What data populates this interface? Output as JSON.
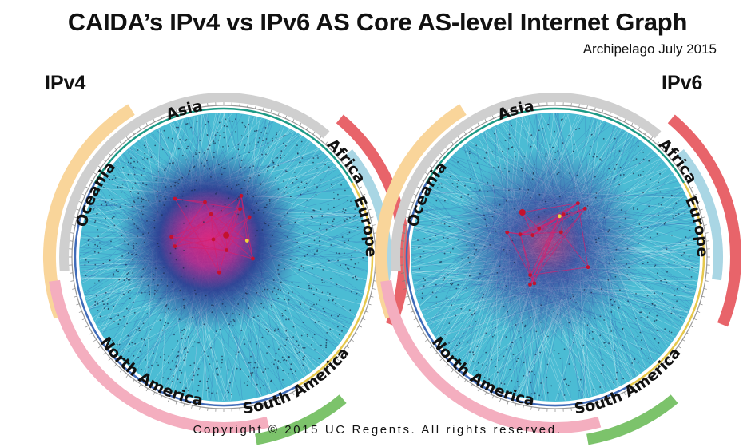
{
  "title": "CAIDA’s IPv4 vs IPv6  AS Core AS-level Internet Graph",
  "subtitle": "Archipelago July 2015",
  "copyright": "Copyright © 2015 UC Regents. All rights reserved.",
  "colors": {
    "oceania": "#f9d59a",
    "asia": "#cfcfcf",
    "africa": "#e8646a",
    "europe": "#a9d6e4",
    "north_america": "#f4aebf",
    "south_america": "#7cc36b",
    "disk": "#4bbcd4",
    "core_blue": "#2b3a8c",
    "core_pink": "#d21f6e"
  },
  "graphs": [
    {
      "label": "IPv4",
      "regions": [
        {
          "key": "oceania",
          "name": "Oceania"
        },
        {
          "key": "asia",
          "name": "Asia"
        },
        {
          "key": "africa",
          "name": "Africa"
        },
        {
          "key": "europe",
          "name": "Europe"
        },
        {
          "key": "north_america",
          "name": "North America"
        },
        {
          "key": "south_america",
          "name": "South America"
        }
      ]
    },
    {
      "label": "IPv6",
      "regions": [
        {
          "key": "oceania",
          "name": "Oceania"
        },
        {
          "key": "asia",
          "name": "Asia"
        },
        {
          "key": "africa",
          "name": "Africa"
        },
        {
          "key": "europe",
          "name": "Europe"
        },
        {
          "key": "north_america",
          "name": "North America"
        },
        {
          "key": "south_america",
          "name": "South America"
        }
      ]
    }
  ]
}
